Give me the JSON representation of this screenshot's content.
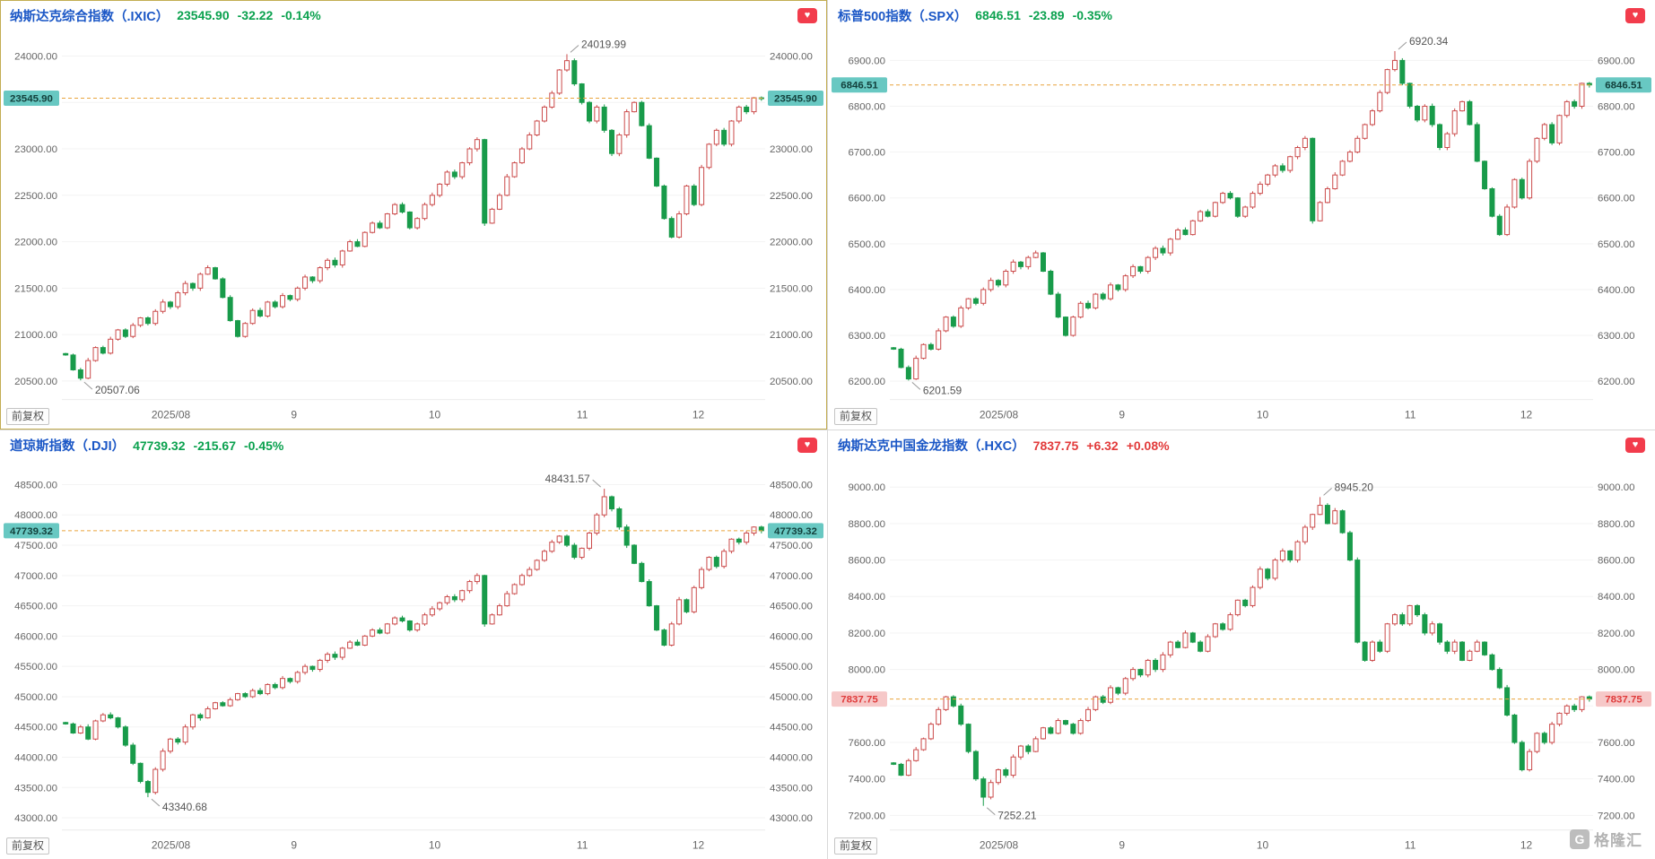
{
  "icons": {
    "favorite": "♥",
    "watermark_letter": "G"
  },
  "watermark": {
    "text": "格隆汇"
  },
  "colors": {
    "title": "#1b57c6",
    "trend_up": "#e23a3a",
    "trend_down": "#0aa14e",
    "up": "#cb4a4a",
    "up_fill": "#ffffff",
    "down": "#189b4a",
    "current_line": "#e9a43d",
    "tag_down_bg": "#68c8c2",
    "tag_down_text": "#123f3b",
    "tag_up_bg": "#f6c8c8",
    "tag_up_text": "#e03b3b",
    "grid": "#f3f3f3",
    "axis_text": "#666666",
    "annotation_text": "#555555",
    "heart_bg": "#f23c4c",
    "selected_border": "#c3ad52"
  },
  "chart_data": [
    {
      "type": "candlestick",
      "name": "nasdaq-composite",
      "selected": true,
      "title": "纳斯达克综合指数（.IXIC）",
      "price_label": "23545.90",
      "change_label": "-32.22",
      "change_pct_label": "-0.14%",
      "trend": "down",
      "adjust_label": "前复权",
      "current_value": 23545.9,
      "y_ticks": [
        24000,
        23500,
        23000,
        22500,
        22000,
        21500,
        21000,
        20500
      ],
      "y_range": [
        20300,
        24150
      ],
      "x_labels": [
        {
          "label": "2025/08",
          "pos": 0.155
        },
        {
          "label": "9",
          "pos": 0.33
        },
        {
          "label": "10",
          "pos": 0.53
        },
        {
          "label": "11",
          "pos": 0.74
        },
        {
          "label": "12",
          "pos": 0.905
        }
      ],
      "high_annotation": {
        "label": "24019.99",
        "value": 24019.99,
        "side": "right"
      },
      "low_annotation": {
        "label": "20507.06",
        "value": 20507.06,
        "side": "right"
      },
      "closes": [
        20780,
        20620,
        20530,
        20720,
        20860,
        20800,
        20950,
        21050,
        20980,
        21100,
        21180,
        21120,
        21250,
        21350,
        21300,
        21450,
        21550,
        21500,
        21650,
        21720,
        21600,
        21400,
        21150,
        20980,
        21120,
        21260,
        21200,
        21350,
        21300,
        21420,
        21380,
        21500,
        21620,
        21580,
        21720,
        21800,
        21750,
        21900,
        22000,
        21950,
        22100,
        22200,
        22150,
        22300,
        22400,
        22320,
        22150,
        22250,
        22400,
        22500,
        22620,
        22750,
        22700,
        22850,
        23000,
        23100,
        22200,
        22350,
        22500,
        22700,
        22850,
        23000,
        23150,
        23300,
        23450,
        23600,
        23850,
        23950,
        23700,
        23500,
        23300,
        23450,
        23200,
        22950,
        23150,
        23400,
        23500,
        23250,
        22900,
        22600,
        22250,
        22050,
        22300,
        22600,
        22400,
        22800,
        23050,
        23200,
        23050,
        23300,
        23450,
        23400,
        23550,
        23545.9
      ]
    },
    {
      "type": "candlestick",
      "name": "sp500",
      "selected": false,
      "title": "标普500指数（.SPX）",
      "price_label": "6846.51",
      "change_label": "-23.89",
      "change_pct_label": "-0.35%",
      "trend": "down",
      "adjust_label": "前复权",
      "current_value": 6846.51,
      "y_ticks": [
        6900,
        6800,
        6700,
        6600,
        6500,
        6400,
        6300,
        6200
      ],
      "y_range": [
        6160,
        6940
      ],
      "x_labels": [
        {
          "label": "2025/08",
          "pos": 0.155
        },
        {
          "label": "9",
          "pos": 0.33
        },
        {
          "label": "10",
          "pos": 0.53
        },
        {
          "label": "11",
          "pos": 0.74
        },
        {
          "label": "12",
          "pos": 0.905
        }
      ],
      "high_annotation": {
        "label": "6920.34",
        "value": 6920.34,
        "side": "right"
      },
      "low_annotation": {
        "label": "6201.59",
        "value": 6201.59,
        "side": "right"
      },
      "closes": [
        6270,
        6230,
        6205,
        6250,
        6280,
        6270,
        6310,
        6340,
        6320,
        6360,
        6380,
        6370,
        6400,
        6420,
        6410,
        6440,
        6460,
        6450,
        6470,
        6480,
        6440,
        6390,
        6340,
        6300,
        6340,
        6370,
        6360,
        6390,
        6380,
        6410,
        6400,
        6430,
        6450,
        6440,
        6470,
        6490,
        6480,
        6510,
        6530,
        6520,
        6550,
        6570,
        6560,
        6590,
        6610,
        6600,
        6560,
        6580,
        6610,
        6630,
        6650,
        6670,
        6660,
        6690,
        6710,
        6730,
        6550,
        6590,
        6620,
        6650,
        6680,
        6700,
        6730,
        6760,
        6790,
        6830,
        6880,
        6900,
        6850,
        6800,
        6770,
        6800,
        6760,
        6710,
        6740,
        6790,
        6810,
        6760,
        6680,
        6620,
        6560,
        6520,
        6580,
        6640,
        6600,
        6680,
        6730,
        6760,
        6720,
        6780,
        6810,
        6800,
        6850,
        6846.51
      ]
    },
    {
      "type": "candlestick",
      "name": "dow-jones",
      "selected": false,
      "title": "道琼斯指数（.DJI）",
      "price_label": "47739.32",
      "change_label": "-215.67",
      "change_pct_label": "-0.45%",
      "trend": "down",
      "adjust_label": "前复权",
      "current_value": 47739.32,
      "y_ticks": [
        48500,
        48000,
        47500,
        47000,
        46500,
        46000,
        45500,
        45000,
        44500,
        44000,
        43500,
        43000
      ],
      "y_range": [
        42800,
        48700
      ],
      "x_labels": [
        {
          "label": "2025/08",
          "pos": 0.155
        },
        {
          "label": "9",
          "pos": 0.33
        },
        {
          "label": "10",
          "pos": 0.53
        },
        {
          "label": "11",
          "pos": 0.74
        },
        {
          "label": "12",
          "pos": 0.905
        }
      ],
      "high_annotation": {
        "label": "48431.57",
        "value": 48431.57,
        "side": "left"
      },
      "low_annotation": {
        "label": "43340.68",
        "value": 43340.68,
        "side": "right"
      },
      "closes": [
        44550,
        44400,
        44500,
        44300,
        44600,
        44700,
        44650,
        44500,
        44200,
        43900,
        43600,
        43420,
        43800,
        44100,
        44300,
        44250,
        44500,
        44700,
        44650,
        44800,
        44900,
        44850,
        44950,
        45050,
        45000,
        45100,
        45050,
        45200,
        45150,
        45300,
        45250,
        45400,
        45500,
        45450,
        45600,
        45700,
        45650,
        45800,
        45900,
        45850,
        46000,
        46100,
        46050,
        46200,
        46300,
        46250,
        46100,
        46200,
        46350,
        46450,
        46550,
        46650,
        46600,
        46750,
        46900,
        47000,
        46200,
        46350,
        46500,
        46700,
        46850,
        47000,
        47100,
        47250,
        47400,
        47550,
        47650,
        47500,
        47300,
        47450,
        47700,
        48000,
        48300,
        48100,
        47800,
        47500,
        47200,
        46900,
        46500,
        46100,
        45850,
        46200,
        46600,
        46400,
        46800,
        47100,
        47300,
        47150,
        47400,
        47600,
        47550,
        47700,
        47800,
        47739.32
      ]
    },
    {
      "type": "candlestick",
      "name": "nasdaq-golden-dragon-china",
      "selected": false,
      "title": "纳斯达克中国金龙指数（.HXC）",
      "price_label": "7837.75",
      "change_label": "+6.32",
      "change_pct_label": "+0.08%",
      "trend": "up",
      "adjust_label": "前复权",
      "current_value": 7837.75,
      "y_ticks": [
        9000,
        8800,
        8600,
        8400,
        8200,
        8000,
        7800,
        7600,
        7400,
        7200
      ],
      "y_range": [
        7120,
        9080
      ],
      "x_labels": [
        {
          "label": "2025/08",
          "pos": 0.155
        },
        {
          "label": "9",
          "pos": 0.33
        },
        {
          "label": "10",
          "pos": 0.53
        },
        {
          "label": "11",
          "pos": 0.74
        },
        {
          "label": "12",
          "pos": 0.905
        }
      ],
      "high_annotation": {
        "label": "8945.20",
        "value": 8945.2,
        "side": "right"
      },
      "low_annotation": {
        "label": "7252.21",
        "value": 7252.21,
        "side": "right"
      },
      "closes": [
        7480,
        7420,
        7500,
        7560,
        7620,
        7700,
        7780,
        7850,
        7800,
        7700,
        7550,
        7400,
        7300,
        7380,
        7450,
        7420,
        7520,
        7580,
        7550,
        7620,
        7680,
        7650,
        7720,
        7700,
        7650,
        7720,
        7780,
        7850,
        7820,
        7900,
        7870,
        7950,
        8000,
        7970,
        8050,
        8000,
        8080,
        8150,
        8120,
        8200,
        8150,
        8100,
        8180,
        8250,
        8220,
        8300,
        8380,
        8350,
        8450,
        8550,
        8500,
        8600,
        8650,
        8600,
        8700,
        8780,
        8850,
        8900,
        8800,
        8870,
        8750,
        8600,
        8150,
        8050,
        8150,
        8100,
        8250,
        8300,
        8250,
        8350,
        8300,
        8200,
        8250,
        8150,
        8100,
        8150,
        8050,
        8100,
        8150,
        8080,
        8000,
        7900,
        7750,
        7600,
        7450,
        7550,
        7650,
        7600,
        7700,
        7760,
        7800,
        7780,
        7850,
        7837.75
      ]
    }
  ]
}
